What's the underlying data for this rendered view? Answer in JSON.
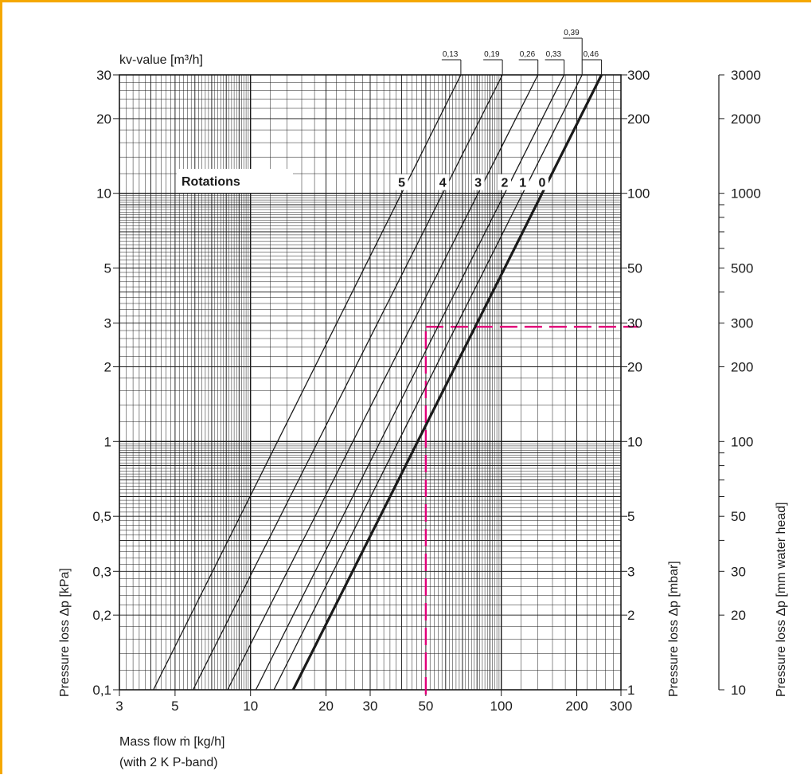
{
  "chart_data": {
    "type": "line",
    "title": "",
    "top_label": "kv-value [m³/h]",
    "xlabel_line1": "Mass flow ṁ [kg/h]",
    "xlabel_line2": "(with 2 K P-band)",
    "ylabel_left": "Pressure loss Δp [kPa]",
    "ylabel_mbar": "Pressure loss Δp [mbar]",
    "ylabel_mm": "Pressure loss Δp [mm water head]",
    "x_scale": "log",
    "y_scale": "log",
    "xlim": [
      3,
      300
    ],
    "ylim": [
      0.1,
      30
    ],
    "grid": true,
    "x_ticks": [
      {
        "v": 3,
        "label": "3"
      },
      {
        "v": 5,
        "label": "5"
      },
      {
        "v": 10,
        "label": "10"
      },
      {
        "v": 20,
        "label": "20"
      },
      {
        "v": 30,
        "label": "30"
      },
      {
        "v": 50,
        "label": "50"
      },
      {
        "v": 100,
        "label": "100"
      },
      {
        "v": 200,
        "label": "200"
      },
      {
        "v": 300,
        "label": "300"
      }
    ],
    "y_ticks_kpa": [
      {
        "v": 0.1,
        "label": "0,1"
      },
      {
        "v": 0.2,
        "label": "0,2"
      },
      {
        "v": 0.3,
        "label": "0,3"
      },
      {
        "v": 0.5,
        "label": "0,5"
      },
      {
        "v": 1,
        "label": "1"
      },
      {
        "v": 2,
        "label": "2"
      },
      {
        "v": 3,
        "label": "3"
      },
      {
        "v": 5,
        "label": "5"
      },
      {
        "v": 10,
        "label": "10"
      },
      {
        "v": 20,
        "label": "20"
      },
      {
        "v": 30,
        "label": "30"
      }
    ],
    "y_ticks_mbar": [
      {
        "v": 0.1,
        "label": "1"
      },
      {
        "v": 0.2,
        "label": "2"
      },
      {
        "v": 0.3,
        "label": "3"
      },
      {
        "v": 0.5,
        "label": "5"
      },
      {
        "v": 1,
        "label": "10"
      },
      {
        "v": 2,
        "label": "20"
      },
      {
        "v": 3,
        "label": "30"
      },
      {
        "v": 5,
        "label": "50"
      },
      {
        "v": 10,
        "label": "100"
      },
      {
        "v": 20,
        "label": "200"
      },
      {
        "v": 30,
        "label": "300"
      }
    ],
    "y_ticks_mm": [
      {
        "v": 0.1,
        "label": "10"
      },
      {
        "v": 0.2,
        "label": "20"
      },
      {
        "v": 0.3,
        "label": "30"
      },
      {
        "v": 0.5,
        "label": "50"
      },
      {
        "v": 1,
        "label": "100"
      },
      {
        "v": 2,
        "label": "200"
      },
      {
        "v": 3,
        "label": "300"
      },
      {
        "v": 5,
        "label": "500"
      },
      {
        "v": 10,
        "label": "1000"
      },
      {
        "v": 20,
        "label": "2000"
      },
      {
        "v": 30,
        "label": "3000"
      }
    ],
    "rotations_label": "Rotations",
    "series": [
      {
        "name": "5",
        "kv": "0,13",
        "bold": false,
        "x": [
          4.1,
          69
        ],
        "y": [
          0.1,
          30
        ]
      },
      {
        "name": "4",
        "kv": "0,19",
        "bold": false,
        "x": [
          5.9,
          101
        ],
        "y": [
          0.1,
          30
        ]
      },
      {
        "name": "3",
        "kv": "0,26",
        "bold": false,
        "x": [
          8.1,
          140
        ],
        "y": [
          0.1,
          30
        ]
      },
      {
        "name": "2",
        "kv": "0,33",
        "bold": false,
        "x": [
          10.5,
          178
        ],
        "y": [
          0.1,
          30
        ]
      },
      {
        "name": "1",
        "kv": "0,39",
        "bold": false,
        "x": [
          12.4,
          210
        ],
        "y": [
          0.1,
          30
        ]
      },
      {
        "name": "0",
        "kv": "0,46",
        "bold": true,
        "x": [
          14.8,
          251
        ],
        "y": [
          0.1,
          30
        ]
      }
    ],
    "reference": {
      "color": "#e2007a",
      "x": 50,
      "y": 2.9
    },
    "colors": {
      "grid": "#1a1a1a",
      "frame": "#f5a800",
      "reference": "#e2007a"
    }
  }
}
